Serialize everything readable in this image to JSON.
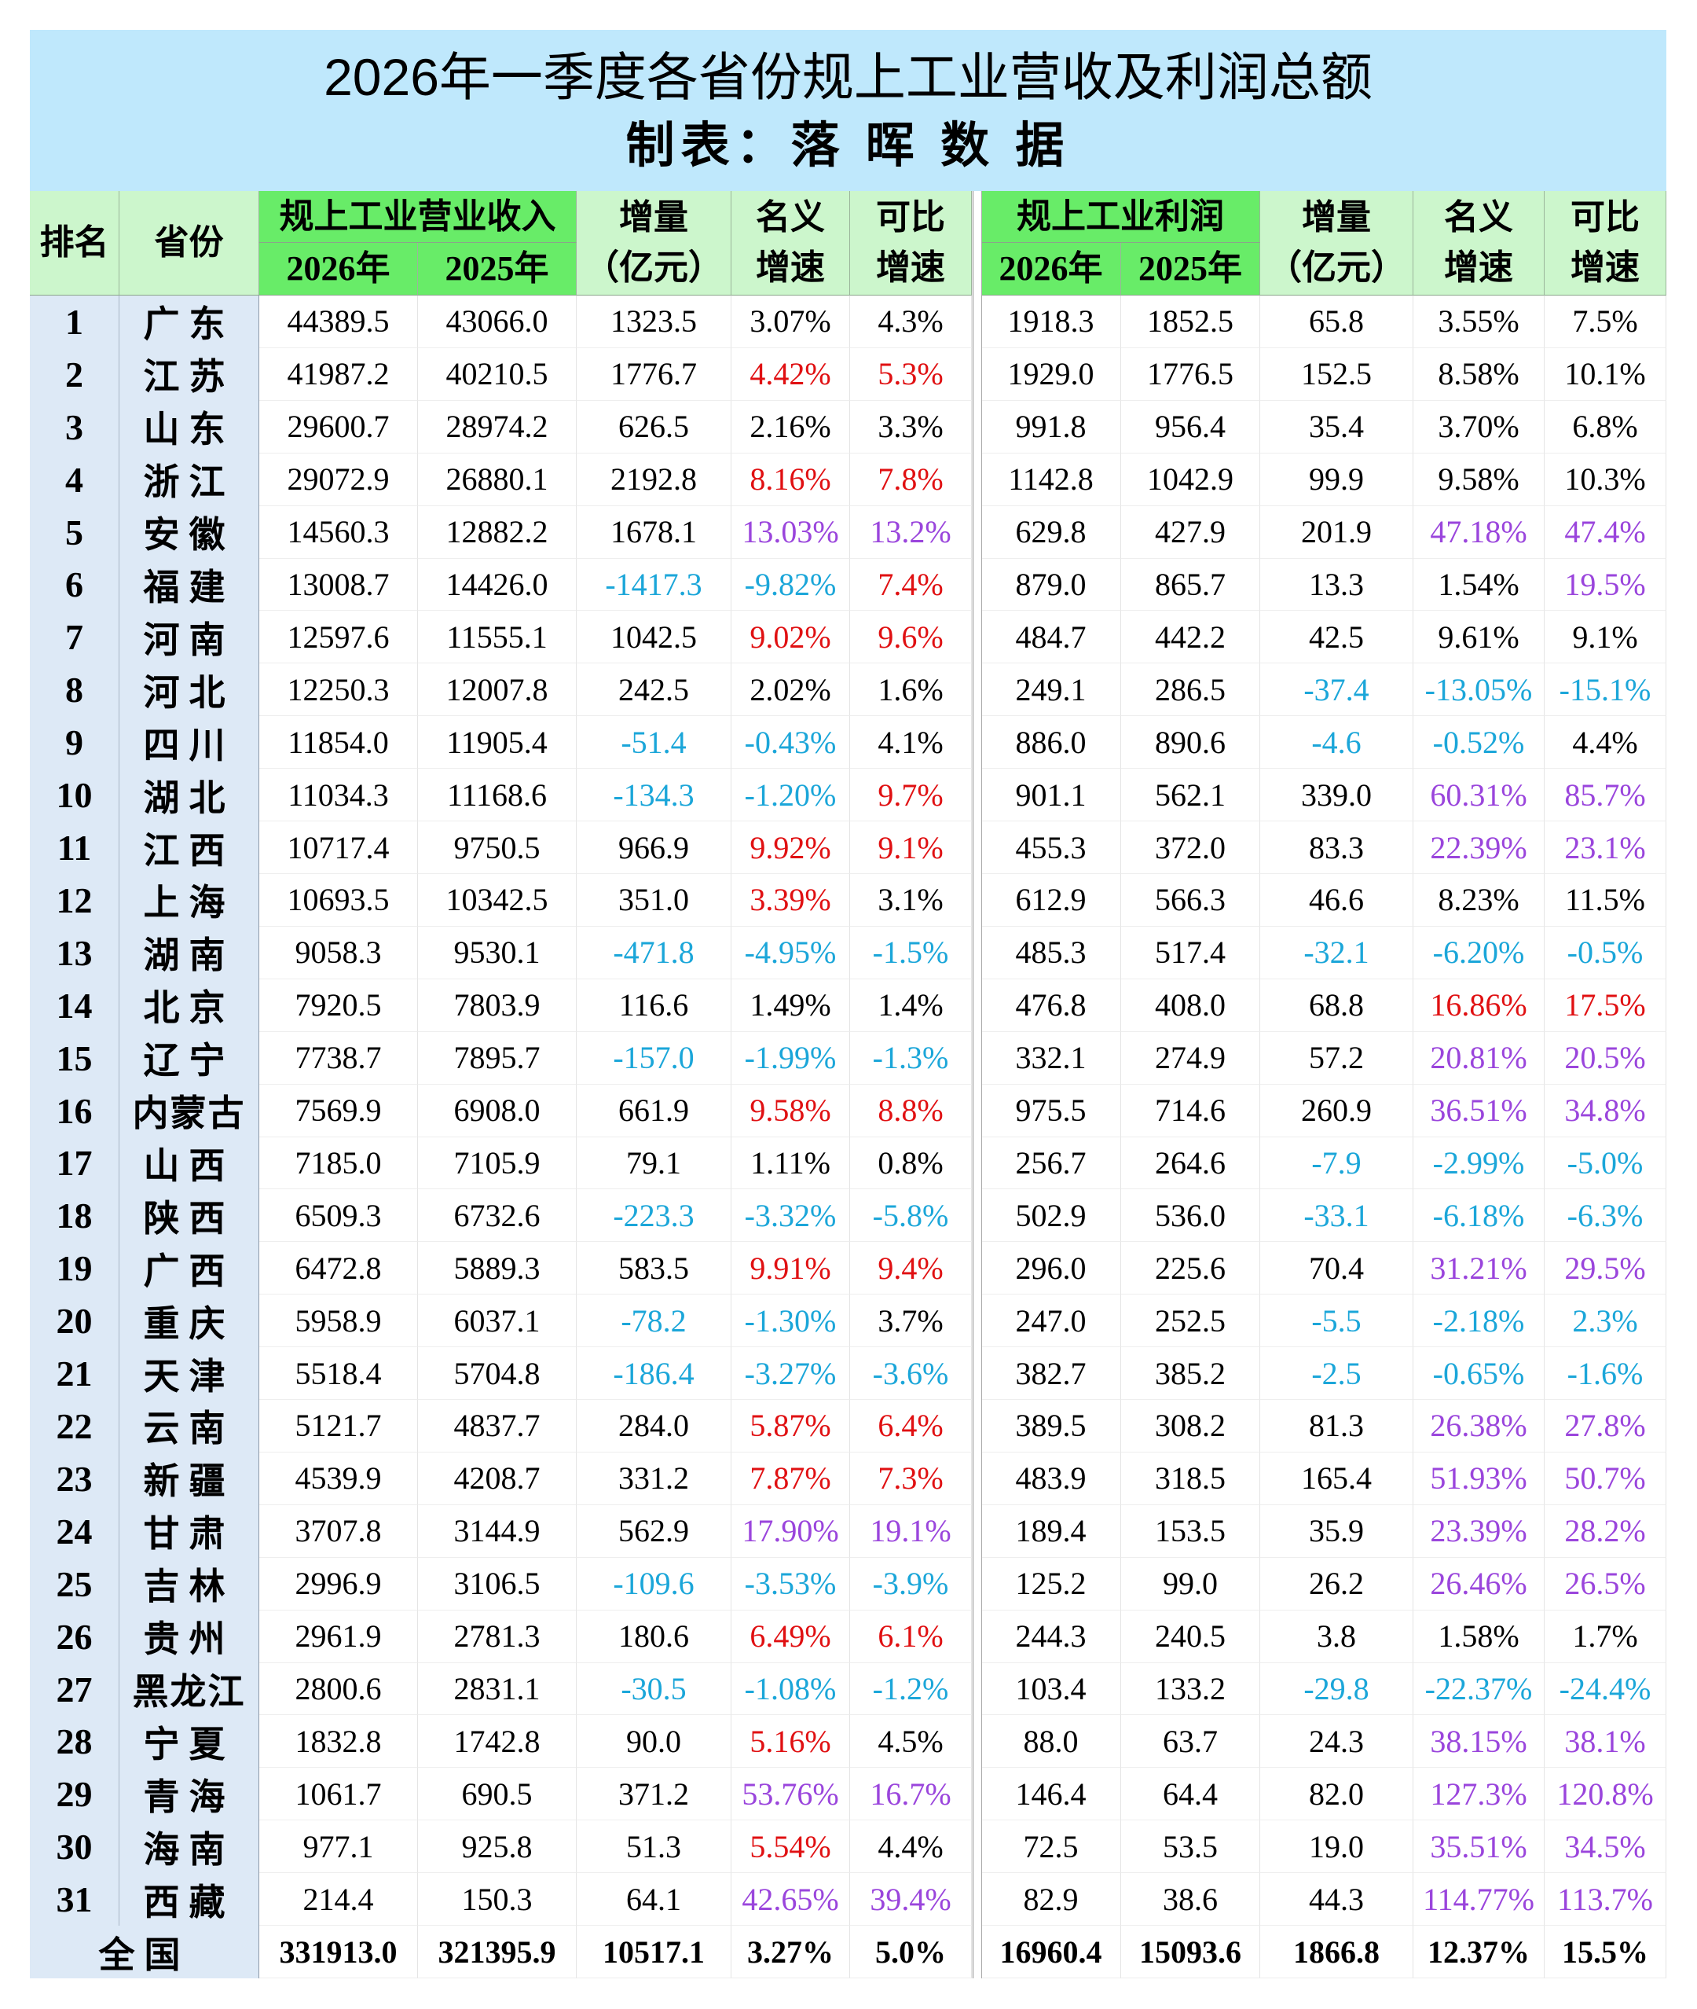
{
  "header": {
    "title": "2026年一季度各省份规上工业营收及利润总额",
    "subtitle": "制表：落 晖 数 据"
  },
  "columns": {
    "rank": "排名",
    "province": "省份",
    "revenue_group": "规上工业营业收入",
    "profit_group": "规上工业利润",
    "year_2026": "2026年",
    "year_2025": "2025年",
    "increase_l1": "增量",
    "increase_l2": "（亿元）",
    "nominal_l1": "名义",
    "nominal_l2": "增速",
    "comparable_l1": "可比",
    "comparable_l2": "增速"
  },
  "colors": {
    "title_band": "#bfe8fc",
    "header_light_green": "#ccf6cc",
    "header_bright_green": "#68ec68",
    "left_column": "#dde9f6",
    "red": "#e01012",
    "blue": "#1ba6d9",
    "purple": "#9a45dc"
  },
  "rows": [
    {
      "rank": "1",
      "province": "广东",
      "rev26": "44389.5",
      "rev25": "43066.0",
      "rev_inc": "1323.5",
      "rev_nom": "3.07%",
      "rev_cmp": "4.3%",
      "pro26": "1918.3",
      "pro25": "1852.5",
      "pro_inc": "65.8",
      "pro_nom": "3.55%",
      "pro_cmp": "7.5%",
      "cc": "nnnnnnn"
    },
    {
      "rank": "2",
      "province": "江苏",
      "rev26": "41987.2",
      "rev25": "40210.5",
      "rev_inc": "1776.7",
      "rev_nom": "4.42%",
      "rev_cmp": "5.3%",
      "pro26": "1929.0",
      "pro25": "1776.5",
      "pro_inc": "152.5",
      "pro_nom": "8.58%",
      "pro_cmp": "10.1%",
      "cc": "nrrnnnn"
    },
    {
      "rank": "3",
      "province": "山东",
      "rev26": "29600.7",
      "rev25": "28974.2",
      "rev_inc": "626.5",
      "rev_nom": "2.16%",
      "rev_cmp": "3.3%",
      "pro26": "991.8",
      "pro25": "956.4",
      "pro_inc": "35.4",
      "pro_nom": "3.70%",
      "pro_cmp": "6.8%",
      "cc": "nnnnnnn"
    },
    {
      "rank": "4",
      "province": "浙江",
      "rev26": "29072.9",
      "rev25": "26880.1",
      "rev_inc": "2192.8",
      "rev_nom": "8.16%",
      "rev_cmp": "7.8%",
      "pro26": "1142.8",
      "pro25": "1042.9",
      "pro_inc": "99.9",
      "pro_nom": "9.58%",
      "pro_cmp": "10.3%",
      "cc": "nrrnnnn"
    },
    {
      "rank": "5",
      "province": "安徽",
      "rev26": "14560.3",
      "rev25": "12882.2",
      "rev_inc": "1678.1",
      "rev_nom": "13.03%",
      "rev_cmp": "13.2%",
      "pro26": "629.8",
      "pro25": "427.9",
      "pro_inc": "201.9",
      "pro_nom": "47.18%",
      "pro_cmp": "47.4%",
      "cc": "nppnnpp"
    },
    {
      "rank": "6",
      "province": "福建",
      "rev26": "13008.7",
      "rev25": "14426.0",
      "rev_inc": "-1417.3",
      "rev_nom": "-9.82%",
      "rev_cmp": "7.4%",
      "pro26": "879.0",
      "pro25": "865.7",
      "pro_inc": "13.3",
      "pro_nom": "1.54%",
      "pro_cmp": "19.5%",
      "cc": "bbrnnnp"
    },
    {
      "rank": "7",
      "province": "河南",
      "rev26": "12597.6",
      "rev25": "11555.1",
      "rev_inc": "1042.5",
      "rev_nom": "9.02%",
      "rev_cmp": "9.6%",
      "pro26": "484.7",
      "pro25": "442.2",
      "pro_inc": "42.5",
      "pro_nom": "9.61%",
      "pro_cmp": "9.1%",
      "cc": "nrrnnnn"
    },
    {
      "rank": "8",
      "province": "河北",
      "rev26": "12250.3",
      "rev25": "12007.8",
      "rev_inc": "242.5",
      "rev_nom": "2.02%",
      "rev_cmp": "1.6%",
      "pro26": "249.1",
      "pro25": "286.5",
      "pro_inc": "-37.4",
      "pro_nom": "-13.05%",
      "pro_cmp": "-15.1%",
      "cc": "nnnnbbb"
    },
    {
      "rank": "9",
      "province": "四川",
      "rev26": "11854.0",
      "rev25": "11905.4",
      "rev_inc": "-51.4",
      "rev_nom": "-0.43%",
      "rev_cmp": "4.1%",
      "pro26": "886.0",
      "pro25": "890.6",
      "pro_inc": "-4.6",
      "pro_nom": "-0.52%",
      "pro_cmp": "4.4%",
      "cc": "bbnnbbn"
    },
    {
      "rank": "10",
      "province": "湖北",
      "rev26": "11034.3",
      "rev25": "11168.6",
      "rev_inc": "-134.3",
      "rev_nom": "-1.20%",
      "rev_cmp": "9.7%",
      "pro26": "901.1",
      "pro25": "562.1",
      "pro_inc": "339.0",
      "pro_nom": "60.31%",
      "pro_cmp": "85.7%",
      "cc": "bbrnnpp"
    },
    {
      "rank": "11",
      "province": "江西",
      "rev26": "10717.4",
      "rev25": "9750.5",
      "rev_inc": "966.9",
      "rev_nom": "9.92%",
      "rev_cmp": "9.1%",
      "pro26": "455.3",
      "pro25": "372.0",
      "pro_inc": "83.3",
      "pro_nom": "22.39%",
      "pro_cmp": "23.1%",
      "cc": "nrrnnpp"
    },
    {
      "rank": "12",
      "province": "上海",
      "rev26": "10693.5",
      "rev25": "10342.5",
      "rev_inc": "351.0",
      "rev_nom": "3.39%",
      "rev_cmp": "3.1%",
      "pro26": "612.9",
      "pro25": "566.3",
      "pro_inc": "46.6",
      "pro_nom": "8.23%",
      "pro_cmp": "11.5%",
      "cc": "nrnnnnn"
    },
    {
      "rank": "13",
      "province": "湖南",
      "rev26": "9058.3",
      "rev25": "9530.1",
      "rev_inc": "-471.8",
      "rev_nom": "-4.95%",
      "rev_cmp": "-1.5%",
      "pro26": "485.3",
      "pro25": "517.4",
      "pro_inc": "-32.1",
      "pro_nom": "-6.20%",
      "pro_cmp": "-0.5%",
      "cc": "bbbnbbb"
    },
    {
      "rank": "14",
      "province": "北京",
      "rev26": "7920.5",
      "rev25": "7803.9",
      "rev_inc": "116.6",
      "rev_nom": "1.49%",
      "rev_cmp": "1.4%",
      "pro26": "476.8",
      "pro25": "408.0",
      "pro_inc": "68.8",
      "pro_nom": "16.86%",
      "pro_cmp": "17.5%",
      "cc": "nnnnnrr"
    },
    {
      "rank": "15",
      "province": "辽宁",
      "rev26": "7738.7",
      "rev25": "7895.7",
      "rev_inc": "-157.0",
      "rev_nom": "-1.99%",
      "rev_cmp": "-1.3%",
      "pro26": "332.1",
      "pro25": "274.9",
      "pro_inc": "57.2",
      "pro_nom": "20.81%",
      "pro_cmp": "20.5%",
      "cc": "bbbnnpp"
    },
    {
      "rank": "16",
      "province": "内蒙古",
      "rev26": "7569.9",
      "rev25": "6908.0",
      "rev_inc": "661.9",
      "rev_nom": "9.58%",
      "rev_cmp": "8.8%",
      "pro26": "975.5",
      "pro25": "714.6",
      "pro_inc": "260.9",
      "pro_nom": "36.51%",
      "pro_cmp": "34.8%",
      "cc": "nrrnnpp"
    },
    {
      "rank": "17",
      "province": "山西",
      "rev26": "7185.0",
      "rev25": "7105.9",
      "rev_inc": "79.1",
      "rev_nom": "1.11%",
      "rev_cmp": "0.8%",
      "pro26": "256.7",
      "pro25": "264.6",
      "pro_inc": "-7.9",
      "pro_nom": "-2.99%",
      "pro_cmp": "-5.0%",
      "cc": "nnnnbbb"
    },
    {
      "rank": "18",
      "province": "陕西",
      "rev26": "6509.3",
      "rev25": "6732.6",
      "rev_inc": "-223.3",
      "rev_nom": "-3.32%",
      "rev_cmp": "-5.8%",
      "pro26": "502.9",
      "pro25": "536.0",
      "pro_inc": "-33.1",
      "pro_nom": "-6.18%",
      "pro_cmp": "-6.3%",
      "cc": "bbbnbbb"
    },
    {
      "rank": "19",
      "province": "广西",
      "rev26": "6472.8",
      "rev25": "5889.3",
      "rev_inc": "583.5",
      "rev_nom": "9.91%",
      "rev_cmp": "9.4%",
      "pro26": "296.0",
      "pro25": "225.6",
      "pro_inc": "70.4",
      "pro_nom": "31.21%",
      "pro_cmp": "29.5%",
      "cc": "nrrnnpp"
    },
    {
      "rank": "20",
      "province": "重庆",
      "rev26": "5958.9",
      "rev25": "6037.1",
      "rev_inc": "-78.2",
      "rev_nom": "-1.30%",
      "rev_cmp": "3.7%",
      "pro26": "247.0",
      "pro25": "252.5",
      "pro_inc": "-5.5",
      "pro_nom": "-2.18%",
      "pro_cmp": "2.3%",
      "cc": "bbnnbbb"
    },
    {
      "rank": "21",
      "province": "天津",
      "rev26": "5518.4",
      "rev25": "5704.8",
      "rev_inc": "-186.4",
      "rev_nom": "-3.27%",
      "rev_cmp": "-3.6%",
      "pro26": "382.7",
      "pro25": "385.2",
      "pro_inc": "-2.5",
      "pro_nom": "-0.65%",
      "pro_cmp": "-1.6%",
      "cc": "bbbnbbb"
    },
    {
      "rank": "22",
      "province": "云南",
      "rev26": "5121.7",
      "rev25": "4837.7",
      "rev_inc": "284.0",
      "rev_nom": "5.87%",
      "rev_cmp": "6.4%",
      "pro26": "389.5",
      "pro25": "308.2",
      "pro_inc": "81.3",
      "pro_nom": "26.38%",
      "pro_cmp": "27.8%",
      "cc": "nrrnnpp"
    },
    {
      "rank": "23",
      "province": "新疆",
      "rev26": "4539.9",
      "rev25": "4208.7",
      "rev_inc": "331.2",
      "rev_nom": "7.87%",
      "rev_cmp": "7.3%",
      "pro26": "483.9",
      "pro25": "318.5",
      "pro_inc": "165.4",
      "pro_nom": "51.93%",
      "pro_cmp": "50.7%",
      "cc": "nrrnnpp"
    },
    {
      "rank": "24",
      "province": "甘肃",
      "rev26": "3707.8",
      "rev25": "3144.9",
      "rev_inc": "562.9",
      "rev_nom": "17.90%",
      "rev_cmp": "19.1%",
      "pro26": "189.4",
      "pro25": "153.5",
      "pro_inc": "35.9",
      "pro_nom": "23.39%",
      "pro_cmp": "28.2%",
      "cc": "nppnnpp"
    },
    {
      "rank": "25",
      "province": "吉林",
      "rev26": "2996.9",
      "rev25": "3106.5",
      "rev_inc": "-109.6",
      "rev_nom": "-3.53%",
      "rev_cmp": "-3.9%",
      "pro26": "125.2",
      "pro25": "99.0",
      "pro_inc": "26.2",
      "pro_nom": "26.46%",
      "pro_cmp": "26.5%",
      "cc": "bbbnnpp"
    },
    {
      "rank": "26",
      "province": "贵州",
      "rev26": "2961.9",
      "rev25": "2781.3",
      "rev_inc": "180.6",
      "rev_nom": "6.49%",
      "rev_cmp": "6.1%",
      "pro26": "244.3",
      "pro25": "240.5",
      "pro_inc": "3.8",
      "pro_nom": "1.58%",
      "pro_cmp": "1.7%",
      "cc": "nrrnnnn"
    },
    {
      "rank": "27",
      "province": "黑龙江",
      "rev26": "2800.6",
      "rev25": "2831.1",
      "rev_inc": "-30.5",
      "rev_nom": "-1.08%",
      "rev_cmp": "-1.2%",
      "pro26": "103.4",
      "pro25": "133.2",
      "pro_inc": "-29.8",
      "pro_nom": "-22.37%",
      "pro_cmp": "-24.4%",
      "cc": "bbbnbbb"
    },
    {
      "rank": "28",
      "province": "宁夏",
      "rev26": "1832.8",
      "rev25": "1742.8",
      "rev_inc": "90.0",
      "rev_nom": "5.16%",
      "rev_cmp": "4.5%",
      "pro26": "88.0",
      "pro25": "63.7",
      "pro_inc": "24.3",
      "pro_nom": "38.15%",
      "pro_cmp": "38.1%",
      "cc": "nrnnnpp"
    },
    {
      "rank": "29",
      "province": "青海",
      "rev26": "1061.7",
      "rev25": "690.5",
      "rev_inc": "371.2",
      "rev_nom": "53.76%",
      "rev_cmp": "16.7%",
      "pro26": "146.4",
      "pro25": "64.4",
      "pro_inc": "82.0",
      "pro_nom": "127.3%",
      "pro_cmp": "120.8%",
      "cc": "nppnnpp"
    },
    {
      "rank": "30",
      "province": "海南",
      "rev26": "977.1",
      "rev25": "925.8",
      "rev_inc": "51.3",
      "rev_nom": "5.54%",
      "rev_cmp": "4.4%",
      "pro26": "72.5",
      "pro25": "53.5",
      "pro_inc": "19.0",
      "pro_nom": "35.51%",
      "pro_cmp": "34.5%",
      "cc": "nrnnnpp"
    },
    {
      "rank": "31",
      "province": "西藏",
      "rev26": "214.4",
      "rev25": "150.3",
      "rev_inc": "64.1",
      "rev_nom": "42.65%",
      "rev_cmp": "39.4%",
      "pro26": "82.9",
      "pro25": "38.6",
      "pro_inc": "44.3",
      "pro_nom": "114.77%",
      "pro_cmp": "113.7%",
      "cc": "nppnnpp"
    }
  ],
  "total": {
    "label": "全国",
    "rev26": "331913.0",
    "rev25": "321395.9",
    "rev_inc": "10517.1",
    "rev_nom": "3.27%",
    "rev_cmp": "5.0%",
    "pro26": "16960.4",
    "pro25": "15093.6",
    "pro_inc": "1866.8",
    "pro_nom": "12.37%",
    "pro_cmp": "15.5%"
  }
}
